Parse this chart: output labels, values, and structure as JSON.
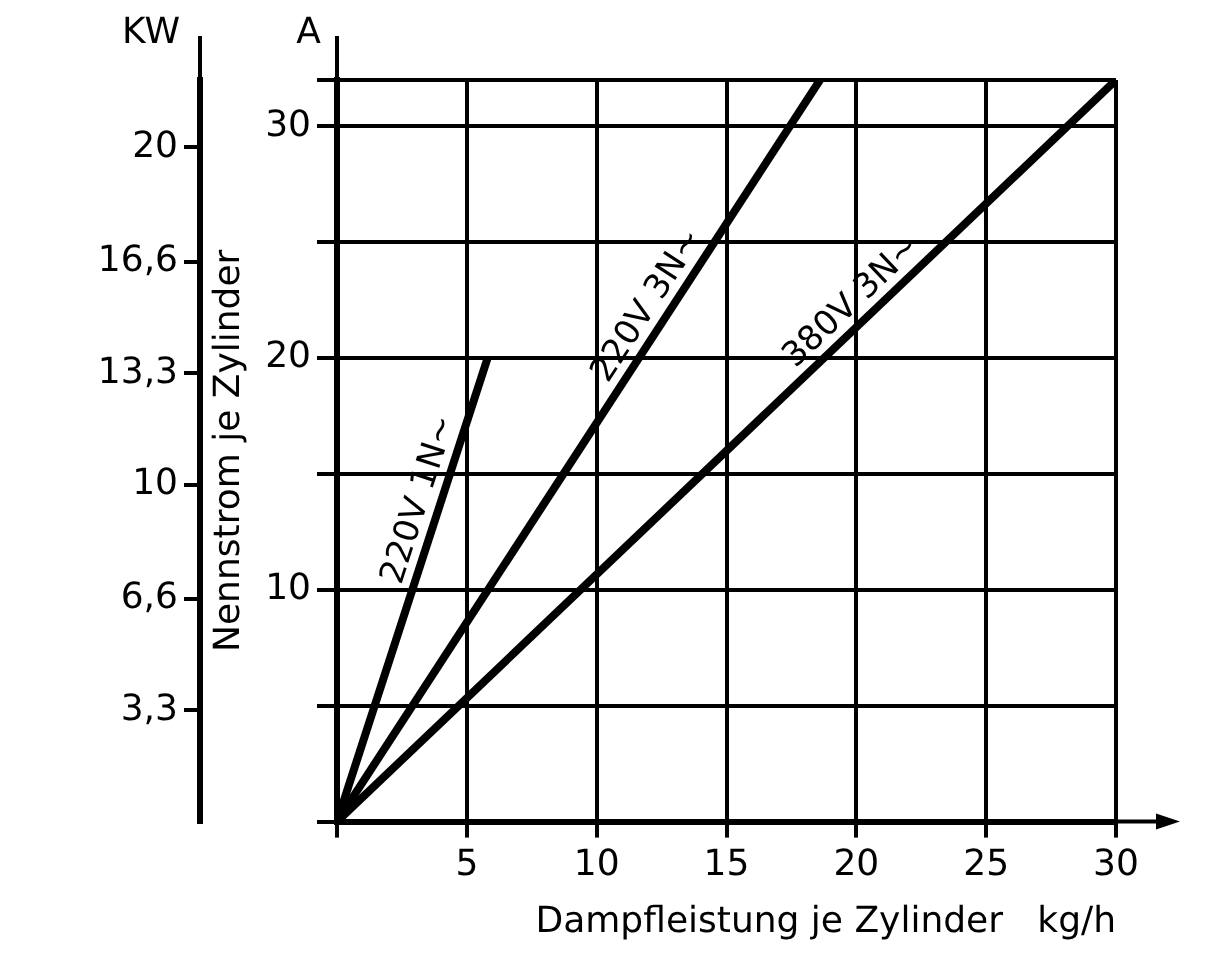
{
  "chart_data": {
    "type": "line",
    "xlabel": "Dampfleistung je Zylinder   kg/h",
    "ylabel": "Nennstrom je Zylinder",
    "y2label": "KW",
    "annotations": [
      "A"
    ],
    "xlim": [
      0,
      30
    ],
    "xticks": [
      {
        "value": 0,
        "label": null
      },
      5,
      10,
      15,
      20,
      25,
      30
    ],
    "ylim": [
      0,
      32
    ],
    "yticks": [
      {
        "value": 0,
        "label": null
      },
      {
        "value": 5,
        "label": null
      },
      10,
      {
        "value": 15,
        "label": null
      },
      20,
      {
        "value": 25,
        "label": null
      },
      30,
      {
        "value": 32,
        "label": null
      }
    ],
    "y2lim": [
      0,
      22
    ],
    "y2ticks": [
      {
        "value": 3.3,
        "label": "3,3"
      },
      {
        "value": 6.6,
        "label": "6,6"
      },
      10,
      {
        "value": 13.3,
        "label": "13,3"
      },
      {
        "value": 16.6,
        "label": "16,6"
      },
      20
    ],
    "grid": true,
    "legend": false,
    "marker": "none",
    "line_style": "solid",
    "series": [
      {
        "name": "220V 1N~",
        "color": "#000000",
        "x": [
          0,
          5.8
        ],
        "values": [
          0,
          20
        ]
      },
      {
        "name": "220V 3N~",
        "color": "#000000",
        "x": [
          0,
          18.6
        ],
        "values": [
          0,
          32
        ]
      },
      {
        "name": "380V 3N~",
        "color": "#000000",
        "x": [
          0,
          30
        ],
        "values": [
          0,
          32
        ]
      }
    ]
  }
}
